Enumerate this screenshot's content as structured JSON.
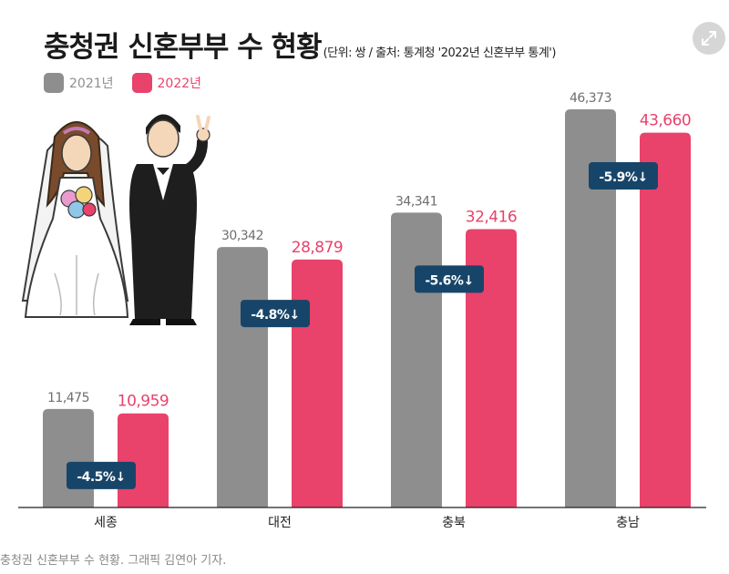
{
  "header": {
    "title": "충청권 신혼부부 수 현황",
    "subtitle": "(단위: 쌍 / 출처: 통계청 '2022년 신혼부부 통계')"
  },
  "caption": "충청권 신혼부부 수 현황. 그래픽 김연아 기자.",
  "colors": {
    "y2021": "#8e8e8e",
    "y2022": "#e9426b",
    "badge": "#174569"
  },
  "icons": {
    "expand": "expand-icon",
    "illustration": "bride-groom-illustration"
  },
  "chart_data": {
    "type": "bar",
    "title": "충청권 신혼부부 수 현황",
    "categories": [
      "세종",
      "대전",
      "충북",
      "충남"
    ],
    "series": [
      {
        "name": "2021년",
        "values": [
          11475,
          30342,
          34341,
          46373
        ],
        "labels": [
          "11,475",
          "30,342",
          "34,341",
          "46,373"
        ]
      },
      {
        "name": "2022년",
        "values": [
          10959,
          28879,
          32416,
          43660
        ],
        "labels": [
          "10,959",
          "28,879",
          "32,416",
          "43,660"
        ]
      }
    ],
    "changes": [
      "-4.5%↓",
      "-4.8%↓",
      "-5.6%↓",
      "-5.9%↓"
    ],
    "ylim": [
      0,
      50000
    ],
    "grid": false,
    "legend": "top-left"
  }
}
